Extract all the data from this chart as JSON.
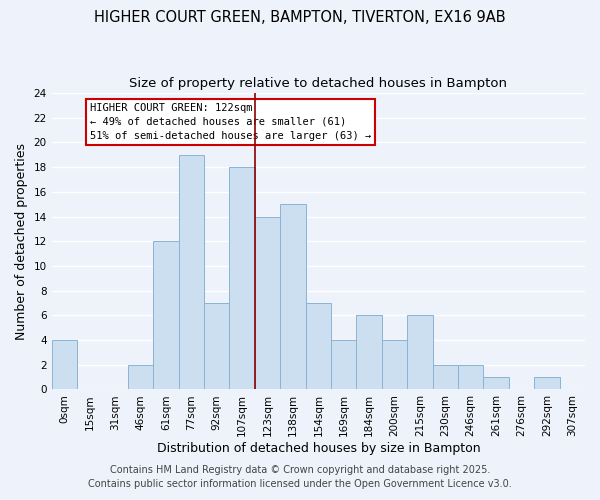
{
  "title": "HIGHER COURT GREEN, BAMPTON, TIVERTON, EX16 9AB",
  "subtitle": "Size of property relative to detached houses in Bampton",
  "xlabel": "Distribution of detached houses by size in Bampton",
  "ylabel": "Number of detached properties",
  "bar_labels": [
    "0sqm",
    "15sqm",
    "31sqm",
    "46sqm",
    "61sqm",
    "77sqm",
    "92sqm",
    "107sqm",
    "123sqm",
    "138sqm",
    "154sqm",
    "169sqm",
    "184sqm",
    "200sqm",
    "215sqm",
    "230sqm",
    "246sqm",
    "261sqm",
    "276sqm",
    "292sqm",
    "307sqm"
  ],
  "bar_values": [
    4,
    0,
    0,
    2,
    12,
    19,
    7,
    18,
    14,
    15,
    7,
    4,
    6,
    4,
    6,
    2,
    2,
    1,
    0,
    1,
    0
  ],
  "bar_color": "#ccdff0",
  "bar_edge_color": "#8ab4d4",
  "vline_x": 8,
  "vline_color": "#8b0000",
  "annotation_title": "HIGHER COURT GREEN: 122sqm",
  "annotation_line1": "← 49% of detached houses are smaller (61)",
  "annotation_line2": "51% of semi-detached houses are larger (63) →",
  "annotation_box_color": "#ffffff",
  "annotation_box_edge": "#cc0000",
  "ylim": [
    0,
    24
  ],
  "yticks": [
    0,
    2,
    4,
    6,
    8,
    10,
    12,
    14,
    16,
    18,
    20,
    22,
    24
  ],
  "footnote1": "Contains HM Land Registry data © Crown copyright and database right 2025.",
  "footnote2": "Contains public sector information licensed under the Open Government Licence v3.0.",
  "bg_color": "#eef2fb",
  "grid_color": "#ffffff",
  "title_fontsize": 10.5,
  "subtitle_fontsize": 9.5,
  "axis_label_fontsize": 9,
  "tick_fontsize": 7.5,
  "footnote_fontsize": 7
}
